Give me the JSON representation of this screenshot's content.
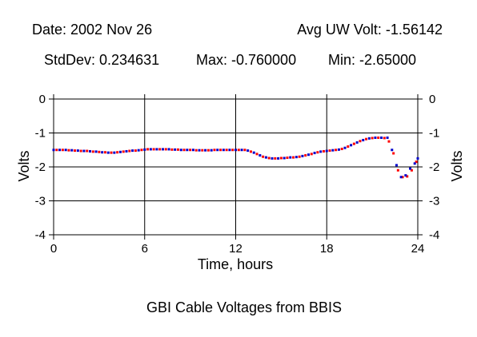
{
  "header": {
    "date": "Date: 2002 Nov 26",
    "avg": "Avg UW Volt: -1.56142",
    "stddev": "StdDev: 0.234631",
    "max": "Max: -0.760000",
    "min": "Min: -2.65000"
  },
  "chart_data": {
    "type": "scatter",
    "title": "GBI Cable Voltages from BBIS",
    "xlabel": "Time, hours",
    "ylabel": "Volts",
    "xlim": [
      0,
      24
    ],
    "ylim": [
      -4,
      0
    ],
    "x_ticks": [
      "0",
      "6",
      "12",
      "18",
      "24"
    ],
    "y_ticks": [
      "0",
      "-1",
      "-2",
      "-3",
      "-4"
    ],
    "x_tick_values": [
      0,
      6,
      12,
      18,
      24
    ],
    "y_tick_values": [
      0,
      -1,
      -2,
      -3,
      -4
    ],
    "grid": true,
    "colors": {
      "red_series": "#ff0000",
      "blue_series": "#0000cc"
    },
    "series": [
      {
        "color": "#ff0000",
        "x": [
          0.2,
          0.6,
          1.0,
          1.4,
          1.8,
          2.2,
          2.6,
          3.0,
          3.4,
          3.8,
          4.2,
          4.6,
          5.0,
          5.4,
          5.8,
          6.2,
          6.6,
          7.0,
          7.4,
          7.8,
          8.2,
          8.6,
          9.0,
          9.4,
          9.8,
          10.2,
          10.6,
          11.0,
          11.4,
          11.8,
          12.2,
          12.6,
          13.0,
          13.4,
          13.8,
          14.2,
          14.6,
          15.0,
          15.4,
          15.8,
          16.2,
          16.6,
          17.0,
          17.4,
          17.8,
          18.2,
          18.6,
          19.0,
          19.4,
          19.8,
          20.2,
          20.6,
          21.0,
          21.4,
          21.8,
          22.1,
          22.4,
          22.7,
          23.0,
          23.3,
          23.6,
          23.9
        ],
        "y": [
          -1.5,
          -1.5,
          -1.51,
          -1.52,
          -1.53,
          -1.53,
          -1.55,
          -1.56,
          -1.57,
          -1.58,
          -1.57,
          -1.55,
          -1.53,
          -1.52,
          -1.5,
          -1.48,
          -1.48,
          -1.48,
          -1.48,
          -1.49,
          -1.49,
          -1.5,
          -1.5,
          -1.51,
          -1.51,
          -1.51,
          -1.5,
          -1.5,
          -1.5,
          -1.5,
          -1.5,
          -1.5,
          -1.55,
          -1.62,
          -1.7,
          -1.74,
          -1.75,
          -1.74,
          -1.73,
          -1.72,
          -1.7,
          -1.66,
          -1.62,
          -1.57,
          -1.54,
          -1.52,
          -1.5,
          -1.47,
          -1.4,
          -1.32,
          -1.24,
          -1.18,
          -1.15,
          -1.14,
          -1.15,
          -1.25,
          -1.6,
          -2.1,
          -2.3,
          -2.28,
          -2.1,
          -1.85
        ]
      },
      {
        "color": "#0000cc",
        "x": [
          0.0,
          0.4,
          0.8,
          1.2,
          1.6,
          2.0,
          2.4,
          2.8,
          3.2,
          3.6,
          4.0,
          4.4,
          4.8,
          5.2,
          5.6,
          6.0,
          6.4,
          6.8,
          7.2,
          7.6,
          8.0,
          8.4,
          8.8,
          9.2,
          9.6,
          10.0,
          10.4,
          10.8,
          11.2,
          11.6,
          12.0,
          12.4,
          12.8,
          13.2,
          13.6,
          14.0,
          14.4,
          14.8,
          15.2,
          15.6,
          16.0,
          16.4,
          16.8,
          17.2,
          17.6,
          18.0,
          18.4,
          18.8,
          19.2,
          19.6,
          20.0,
          20.4,
          20.8,
          21.2,
          21.6,
          22.0,
          22.3,
          22.6,
          22.9,
          23.2,
          23.5,
          23.8,
          24.0
        ],
        "y": [
          -1.5,
          -1.5,
          -1.5,
          -1.51,
          -1.52,
          -1.53,
          -1.54,
          -1.55,
          -1.57,
          -1.58,
          -1.58,
          -1.56,
          -1.54,
          -1.52,
          -1.51,
          -1.49,
          -1.48,
          -1.48,
          -1.48,
          -1.48,
          -1.49,
          -1.5,
          -1.5,
          -1.5,
          -1.51,
          -1.51,
          -1.51,
          -1.5,
          -1.5,
          -1.5,
          -1.5,
          -1.5,
          -1.52,
          -1.58,
          -1.66,
          -1.72,
          -1.75,
          -1.75,
          -1.74,
          -1.72,
          -1.71,
          -1.68,
          -1.64,
          -1.59,
          -1.55,
          -1.53,
          -1.51,
          -1.49,
          -1.44,
          -1.36,
          -1.28,
          -1.21,
          -1.16,
          -1.14,
          -1.14,
          -1.14,
          -1.5,
          -1.95,
          -2.3,
          -2.25,
          -2.05,
          -1.9,
          -1.75
        ]
      }
    ]
  }
}
